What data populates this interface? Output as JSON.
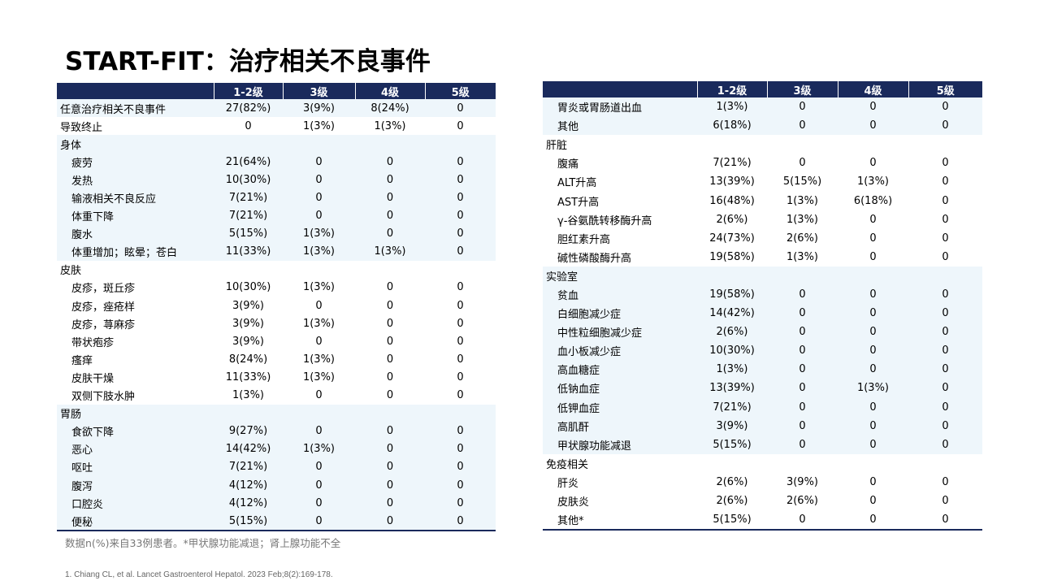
{
  "title": "START-FIT：治疗相关不良事件",
  "grade_headers": [
    "1-2级",
    "3级",
    "4级",
    "5级"
  ],
  "left_rows": [
    {
      "label": "任意治疗相关不良事件",
      "values": [
        "27(82%)",
        "3(9%)",
        "8(24%)",
        "0"
      ],
      "indent": false,
      "shade": true
    },
    {
      "label": "导致终止",
      "values": [
        "0",
        "1(3%)",
        "1(3%)",
        "0"
      ],
      "indent": false,
      "shade": false
    },
    {
      "label": "身体",
      "values": [
        "",
        "",
        "",
        ""
      ],
      "indent": false,
      "shade": true
    },
    {
      "label": "疲劳",
      "values": [
        "21(64%)",
        "0",
        "0",
        "0"
      ],
      "indent": true,
      "shade": true
    },
    {
      "label": "发热",
      "values": [
        "10(30%)",
        "0",
        "0",
        "0"
      ],
      "indent": true,
      "shade": true
    },
    {
      "label": "输液相关不良反应",
      "values": [
        "7(21%)",
        "0",
        "0",
        "0"
      ],
      "indent": true,
      "shade": true
    },
    {
      "label": "体重下降",
      "values": [
        "7(21%)",
        "0",
        "0",
        "0"
      ],
      "indent": true,
      "shade": true
    },
    {
      "label": "腹水",
      "values": [
        "5(15%)",
        "1(3%)",
        "0",
        "0"
      ],
      "indent": true,
      "shade": true
    },
    {
      "label": "体重增加；眩晕；苍白",
      "values": [
        "11(33%)",
        "1(3%)",
        "1(3%)",
        "0"
      ],
      "indent": true,
      "shade": true
    },
    {
      "label": "皮肤",
      "values": [
        "",
        "",
        "",
        ""
      ],
      "indent": false,
      "shade": false
    },
    {
      "label": "皮疹，斑丘疹",
      "values": [
        "10(30%)",
        "1(3%)",
        "0",
        "0"
      ],
      "indent": true,
      "shade": false
    },
    {
      "label": "皮疹，痤疮样",
      "values": [
        "3(9%)",
        "0",
        "0",
        "0"
      ],
      "indent": true,
      "shade": false
    },
    {
      "label": "皮疹，荨麻疹",
      "values": [
        "3(9%)",
        "1(3%)",
        "0",
        "0"
      ],
      "indent": true,
      "shade": false
    },
    {
      "label": "带状疱疹",
      "values": [
        "3(9%)",
        "0",
        "0",
        "0"
      ],
      "indent": true,
      "shade": false
    },
    {
      "label": "瘙痒",
      "values": [
        "8(24%)",
        "1(3%)",
        "0",
        "0"
      ],
      "indent": true,
      "shade": false
    },
    {
      "label": "皮肤干燥",
      "values": [
        "11(33%)",
        "1(3%)",
        "0",
        "0"
      ],
      "indent": true,
      "shade": false
    },
    {
      "label": "双侧下肢水肿",
      "values": [
        "1(3%)",
        "0",
        "0",
        "0"
      ],
      "indent": true,
      "shade": false
    },
    {
      "label": "胃肠",
      "values": [
        "",
        "",
        "",
        ""
      ],
      "indent": false,
      "shade": true
    },
    {
      "label": "食欲下降",
      "values": [
        "9(27%)",
        "0",
        "0",
        "0"
      ],
      "indent": true,
      "shade": true
    },
    {
      "label": "恶心",
      "values": [
        "14(42%)",
        "1(3%)",
        "0",
        "0"
      ],
      "indent": true,
      "shade": true
    },
    {
      "label": "呕吐",
      "values": [
        "7(21%)",
        "0",
        "0",
        "0"
      ],
      "indent": true,
      "shade": true
    },
    {
      "label": "腹泻",
      "values": [
        "4(12%)",
        "0",
        "0",
        "0"
      ],
      "indent": true,
      "shade": true
    },
    {
      "label": "口腔炎",
      "values": [
        "4(12%)",
        "0",
        "0",
        "0"
      ],
      "indent": true,
      "shade": true
    },
    {
      "label": "便秘",
      "values": [
        "5(15%)",
        "0",
        "0",
        "0"
      ],
      "indent": true,
      "shade": true
    }
  ],
  "right_rows": [
    {
      "label": "胃炎或胃肠道出血",
      "values": [
        "1(3%)",
        "0",
        "0",
        "0"
      ],
      "indent": true,
      "shade": true
    },
    {
      "label": "其他",
      "values": [
        "6(18%)",
        "0",
        "0",
        "0"
      ],
      "indent": true,
      "shade": true
    },
    {
      "label": "肝脏",
      "values": [
        "",
        "",
        "",
        ""
      ],
      "indent": false,
      "shade": false
    },
    {
      "label": "腹痛",
      "values": [
        "7(21%)",
        "0",
        "0",
        "0"
      ],
      "indent": true,
      "shade": false
    },
    {
      "label": "ALT升高",
      "values": [
        "13(39%)",
        "5(15%)",
        "1(3%)",
        "0"
      ],
      "indent": true,
      "shade": false
    },
    {
      "label": "AST升高",
      "values": [
        "16(48%)",
        "1(3%)",
        "6(18%)",
        "0"
      ],
      "indent": true,
      "shade": false
    },
    {
      "label": "γ-谷氨酰转移酶升高",
      "values": [
        "2(6%)",
        "1(3%)",
        "0",
        "0"
      ],
      "indent": true,
      "shade": false
    },
    {
      "label": "胆红素升高",
      "values": [
        "24(73%)",
        "2(6%)",
        "0",
        "0"
      ],
      "indent": true,
      "shade": false
    },
    {
      "label": "碱性磷酸酶升高",
      "values": [
        "19(58%)",
        "1(3%)",
        "0",
        "0"
      ],
      "indent": true,
      "shade": false
    },
    {
      "label": "实验室",
      "values": [
        "",
        "",
        "",
        ""
      ],
      "indent": false,
      "shade": true
    },
    {
      "label": "贫血",
      "values": [
        "19(58%)",
        "0",
        "0",
        "0"
      ],
      "indent": true,
      "shade": true
    },
    {
      "label": "白细胞减少症",
      "values": [
        "14(42%)",
        "0",
        "0",
        "0"
      ],
      "indent": true,
      "shade": true
    },
    {
      "label": "中性粒细胞减少症",
      "values": [
        "2(6%)",
        "0",
        "0",
        "0"
      ],
      "indent": true,
      "shade": true
    },
    {
      "label": "血小板减少症",
      "values": [
        "10(30%)",
        "0",
        "0",
        "0"
      ],
      "indent": true,
      "shade": true
    },
    {
      "label": "高血糖症",
      "values": [
        "1(3%)",
        "0",
        "0",
        "0"
      ],
      "indent": true,
      "shade": true
    },
    {
      "label": "低钠血症",
      "values": [
        "13(39%)",
        "0",
        "1(3%)",
        "0"
      ],
      "indent": true,
      "shade": true
    },
    {
      "label": "低钾血症",
      "values": [
        "7(21%)",
        "0",
        "0",
        "0"
      ],
      "indent": true,
      "shade": true
    },
    {
      "label": "高肌酐",
      "values": [
        "3(9%)",
        "0",
        "0",
        "0"
      ],
      "indent": true,
      "shade": true
    },
    {
      "label": "甲状腺功能减退",
      "values": [
        "5(15%)",
        "0",
        "0",
        "0"
      ],
      "indent": true,
      "shade": true
    },
    {
      "label": "免疫相关",
      "values": [
        "",
        "",
        "",
        ""
      ],
      "indent": false,
      "shade": false
    },
    {
      "label": "肝炎",
      "values": [
        "2(6%)",
        "3(9%)",
        "0",
        "0"
      ],
      "indent": true,
      "shade": false
    },
    {
      "label": "皮肤炎",
      "values": [
        "2(6%)",
        "2(6%)",
        "0",
        "0"
      ],
      "indent": true,
      "shade": false
    },
    {
      "label": "其他*",
      "values": [
        "5(15%)",
        "0",
        "0",
        "0"
      ],
      "indent": true,
      "shade": false
    }
  ],
  "footnote": "数据n(%)来自33例患者。*甲状腺功能减退；肾上腺功能不全",
  "reference": "1.   Chiang CL,  et al. Lancet Gastroenterol Hepatol. 2023 Feb;8(2):169-178.",
  "colors": {
    "header_bg": "#1a2a5c",
    "shade_bg": "#eef6fb"
  }
}
